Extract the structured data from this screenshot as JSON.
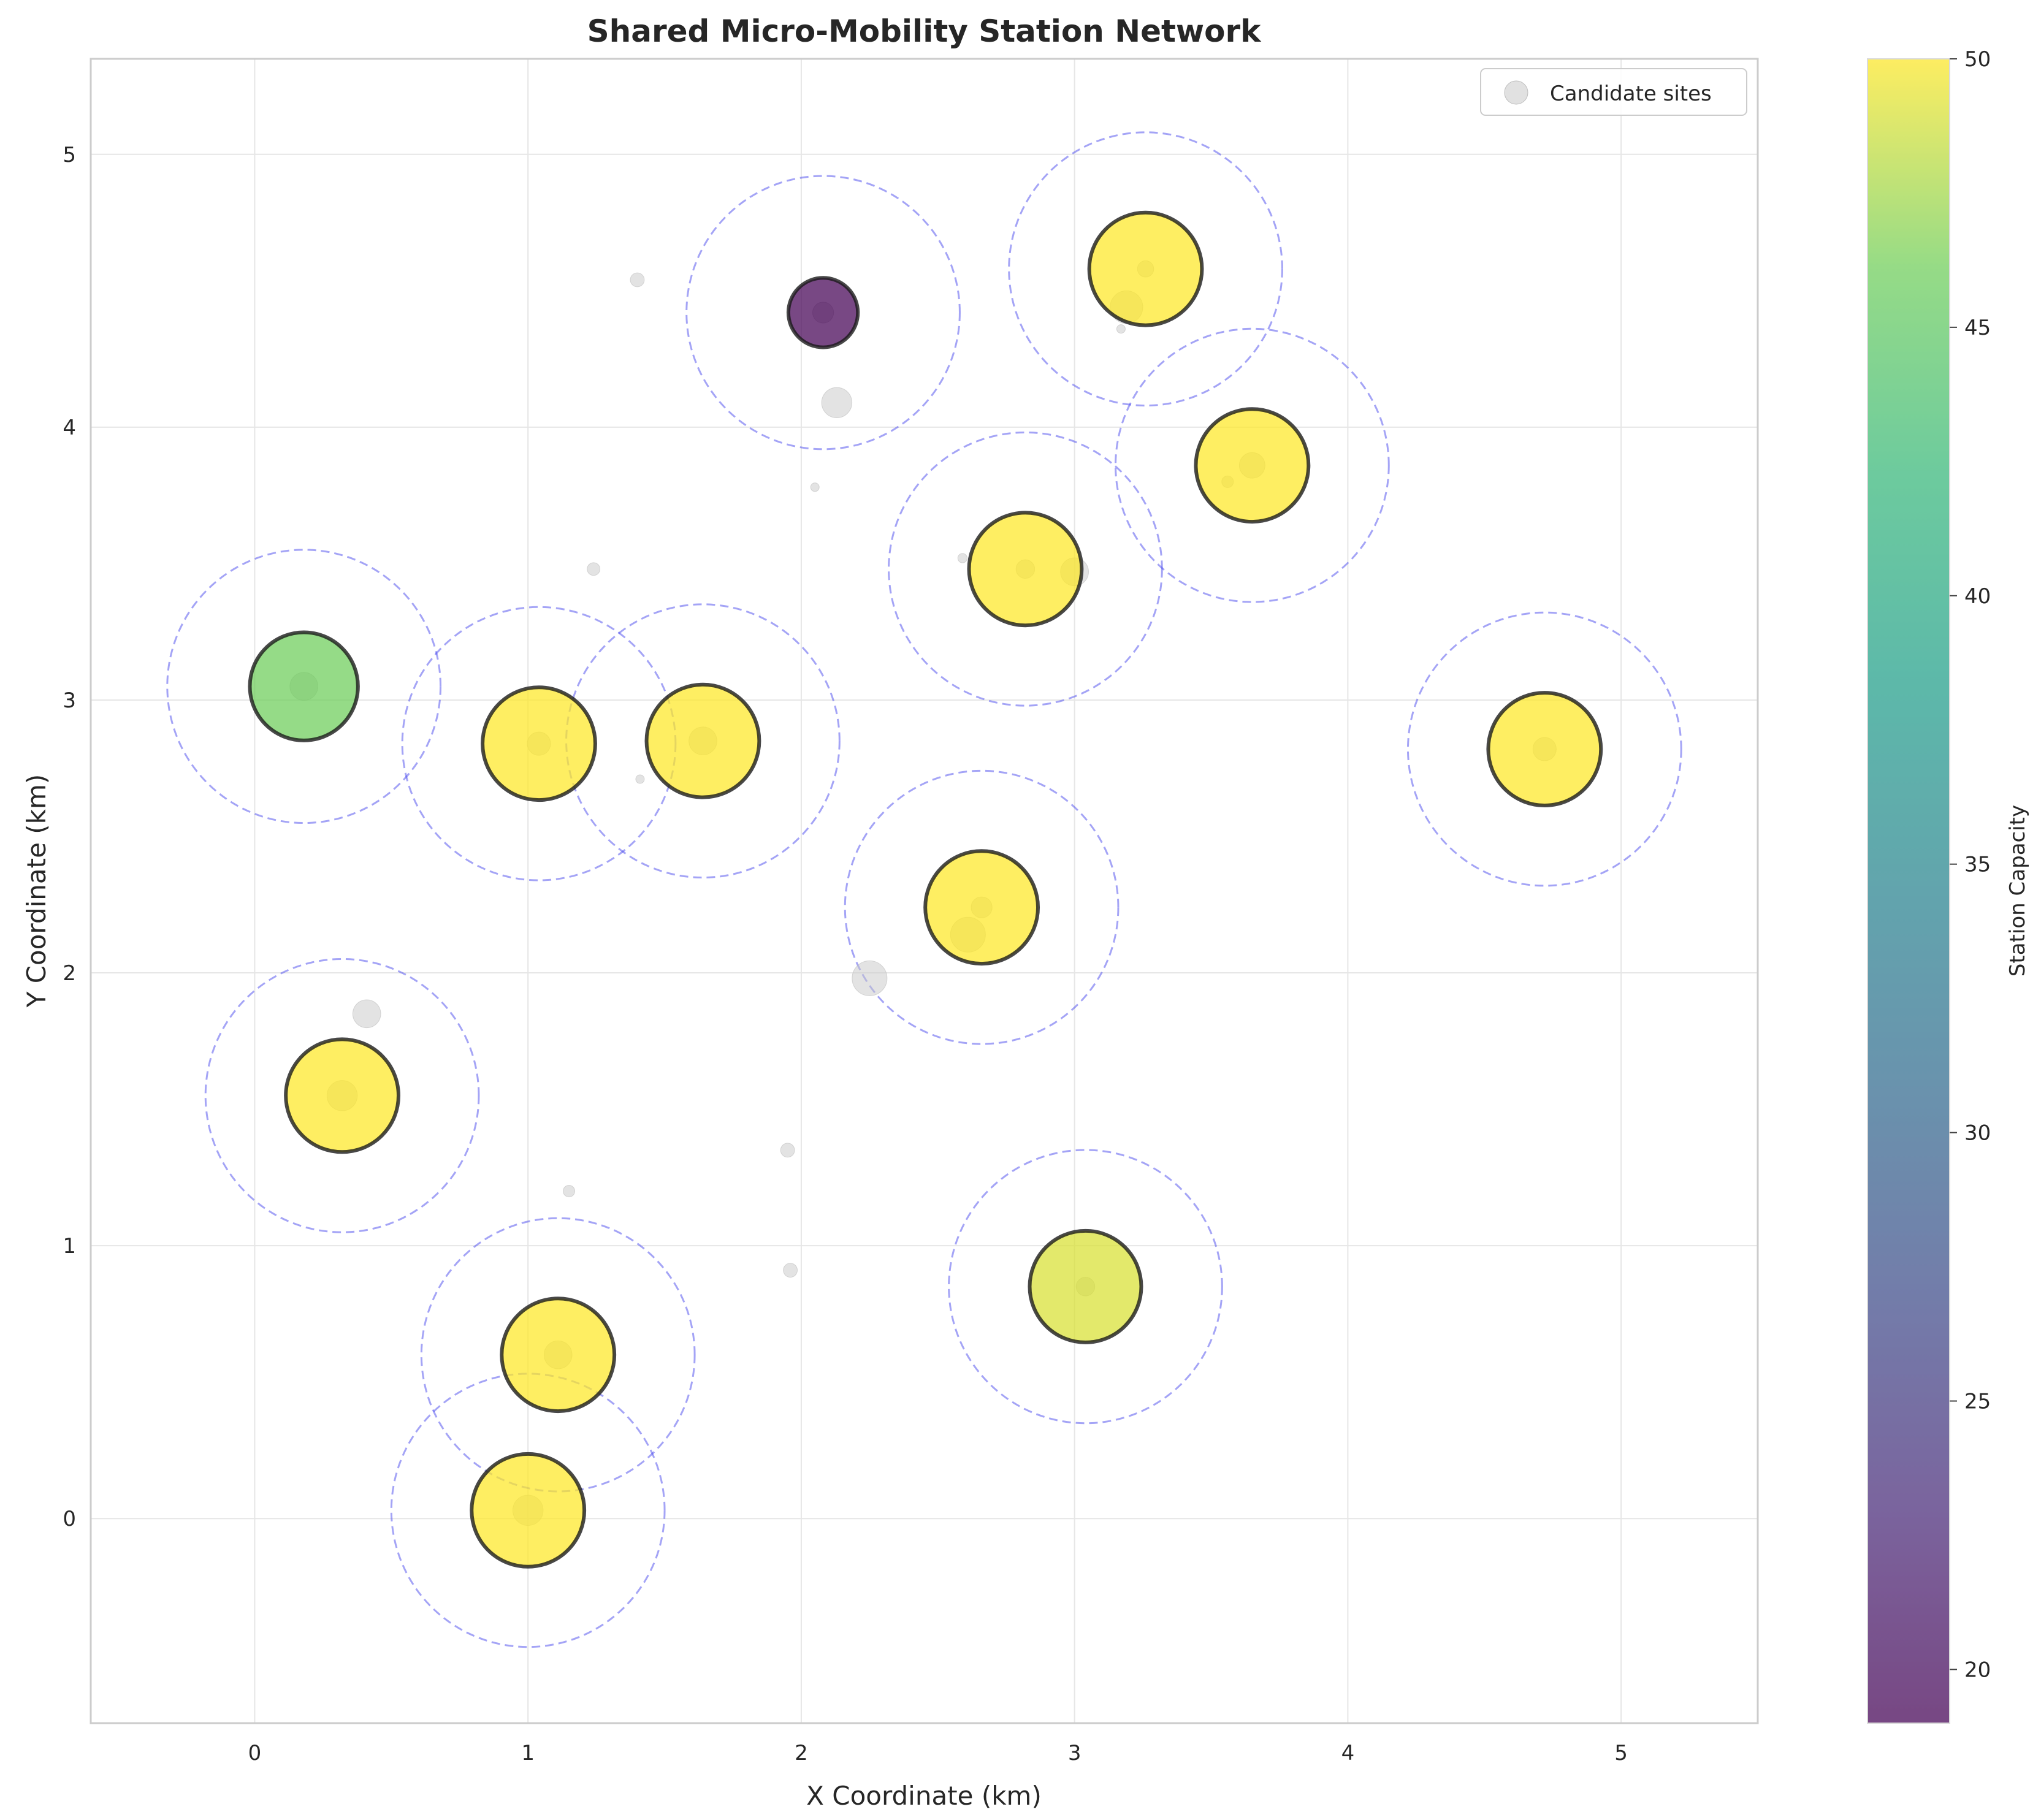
{
  "chart_data": {
    "type": "scatter",
    "title": "Shared Micro-Mobility Station Network",
    "xlabel": "X Coordinate (km)",
    "ylabel": "Y Coordinate (km)",
    "xlim": [
      -0.6,
      5.5
    ],
    "ylim": [
      -0.75,
      5.35
    ],
    "xticks": [
      0,
      1,
      2,
      3,
      4,
      5
    ],
    "yticks": [
      0,
      1,
      2,
      3,
      4,
      5
    ],
    "grid": true,
    "legend": {
      "position": "top-right",
      "entries": [
        "Candidate sites"
      ]
    },
    "colorbar": {
      "label": "Station Capacity",
      "min": 19,
      "max": 50,
      "ticks": [
        20,
        25,
        30,
        35,
        40,
        45,
        50
      ],
      "colormap": "viridis"
    },
    "coverage_radius_km": 0.5,
    "colors": {
      "coverage": "#4a4aee",
      "candidate": "#c8c8c8",
      "station_edge": "#1a1a1a"
    },
    "stations": [
      {
        "x": 2.08,
        "y": 4.42,
        "capacity": 19
      },
      {
        "x": 3.26,
        "y": 4.58,
        "capacity": 50
      },
      {
        "x": 3.65,
        "y": 3.86,
        "capacity": 50
      },
      {
        "x": 2.82,
        "y": 3.48,
        "capacity": 50
      },
      {
        "x": 0.18,
        "y": 3.05,
        "capacity": 46
      },
      {
        "x": 1.04,
        "y": 2.84,
        "capacity": 50
      },
      {
        "x": 1.64,
        "y": 2.85,
        "capacity": 50
      },
      {
        "x": 4.72,
        "y": 2.82,
        "capacity": 50
      },
      {
        "x": 2.66,
        "y": 2.24,
        "capacity": 50
      },
      {
        "x": 0.32,
        "y": 1.55,
        "capacity": 50
      },
      {
        "x": 3.04,
        "y": 0.85,
        "capacity": 49
      },
      {
        "x": 1.11,
        "y": 0.6,
        "capacity": 50
      },
      {
        "x": 1.0,
        "y": 0.03,
        "capacity": 50
      }
    ],
    "candidate_sites": [
      {
        "x": 1.4,
        "y": 4.54,
        "demand": 12
      },
      {
        "x": 2.08,
        "y": 4.42,
        "demand": 18
      },
      {
        "x": 3.19,
        "y": 4.44,
        "demand": 28
      },
      {
        "x": 3.17,
        "y": 4.36,
        "demand": 6
      },
      {
        "x": 3.26,
        "y": 4.58,
        "demand": 14
      },
      {
        "x": 2.13,
        "y": 4.09,
        "demand": 26
      },
      {
        "x": 3.65,
        "y": 3.86,
        "demand": 22
      },
      {
        "x": 3.56,
        "y": 3.8,
        "demand": 10
      },
      {
        "x": 2.05,
        "y": 3.78,
        "demand": 6
      },
      {
        "x": 2.59,
        "y": 3.52,
        "demand": 8
      },
      {
        "x": 2.82,
        "y": 3.48,
        "demand": 16
      },
      {
        "x": 3.0,
        "y": 3.47,
        "demand": 24
      },
      {
        "x": 1.24,
        "y": 3.48,
        "demand": 11
      },
      {
        "x": 0.18,
        "y": 3.05,
        "demand": 24
      },
      {
        "x": 1.04,
        "y": 2.84,
        "demand": 20
      },
      {
        "x": 1.64,
        "y": 2.85,
        "demand": 24
      },
      {
        "x": 1.41,
        "y": 2.71,
        "demand": 6
      },
      {
        "x": 4.72,
        "y": 2.82,
        "demand": 20
      },
      {
        "x": 2.66,
        "y": 2.24,
        "demand": 18
      },
      {
        "x": 2.61,
        "y": 2.14,
        "demand": 30
      },
      {
        "x": 2.25,
        "y": 1.98,
        "demand": 30
      },
      {
        "x": 0.41,
        "y": 1.85,
        "demand": 24
      },
      {
        "x": 0.32,
        "y": 1.55,
        "demand": 26
      },
      {
        "x": 1.95,
        "y": 1.35,
        "demand": 12
      },
      {
        "x": 1.15,
        "y": 1.2,
        "demand": 10
      },
      {
        "x": 1.96,
        "y": 0.91,
        "demand": 12
      },
      {
        "x": 3.04,
        "y": 0.85,
        "demand": 16
      },
      {
        "x": 1.11,
        "y": 0.6,
        "demand": 24
      },
      {
        "x": 1.0,
        "y": 0.03,
        "demand": 26
      }
    ]
  }
}
